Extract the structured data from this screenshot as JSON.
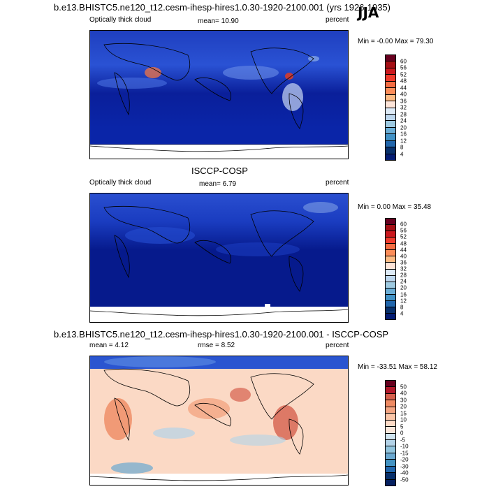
{
  "panels": [
    {
      "title": "b.e13.BHISTC5.ne120_t12.cesm-ihesp-hires1.0.30-1920-2100.001 (yrs 1926-1935)",
      "season": "JJA",
      "left_label": "Optically thick cloud",
      "center_label": "mean=  10.90",
      "right_label": "percent",
      "minmax": "Min = -0.00 Max =  79.30",
      "colorbar_ticks": [
        "60",
        "56",
        "52",
        "48",
        "44",
        "40",
        "36",
        "32",
        "28",
        "24",
        "20",
        "16",
        "12",
        "8",
        "4"
      ],
      "colorbar_colors": [
        "#67001f",
        "#a50f15",
        "#cb181d",
        "#ef3b2c",
        "#f46d43",
        "#fc8d59",
        "#fdbb84",
        "#fee5d9",
        "#deebf7",
        "#bdd7ee",
        "#9ecae1",
        "#6baed6",
        "#4292c6",
        "#2166ac",
        "#08306b",
        "#041c73"
      ]
    },
    {
      "title": "ISCCP-COSP",
      "left_label": "Optically thick cloud",
      "center_label": "mean=   6.79",
      "right_label": "percent",
      "minmax": "Min =  0.00 Max =  35.48",
      "colorbar_ticks": [
        "60",
        "56",
        "52",
        "48",
        "44",
        "40",
        "36",
        "32",
        "28",
        "24",
        "20",
        "16",
        "12",
        "8",
        "4"
      ],
      "colorbar_colors": [
        "#67001f",
        "#a50f15",
        "#cb181d",
        "#ef3b2c",
        "#f46d43",
        "#fc8d59",
        "#fdbb84",
        "#fee5d9",
        "#deebf7",
        "#bdd7ee",
        "#9ecae1",
        "#6baed6",
        "#4292c6",
        "#2166ac",
        "#08306b",
        "#041c73"
      ]
    },
    {
      "title": "b.e13.BHISTC5.ne120_t12.cesm-ihesp-hires1.0.30-1920-2100.001 - ISCCP-COSP",
      "left_label": "mean =   4.12",
      "center_label": "rmse =   8.52",
      "right_label": "percent",
      "minmax": "Min = -33.51 Max =  58.12",
      "colorbar_ticks": [
        "50",
        "40",
        "30",
        "20",
        "15",
        "10",
        "5",
        "0",
        "-5",
        "-10",
        "-15",
        "-20",
        "-30",
        "-40",
        "-50"
      ],
      "colorbar_colors": [
        "#67001f",
        "#b2182b",
        "#d6604d",
        "#ef8a62",
        "#f4a582",
        "#fbc6a8",
        "#fddbc7",
        "#fbe8dc",
        "#d1e5f0",
        "#b3d3e8",
        "#92c5de",
        "#6aa8d0",
        "#4393c3",
        "#2166ac",
        "#08306b",
        "#052060"
      ]
    }
  ]
}
